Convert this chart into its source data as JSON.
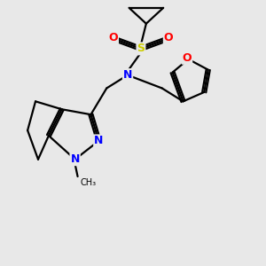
{
  "bg_color": "#e8e8e8",
  "atom_colors": {
    "N": "#0000ff",
    "O": "#ff0000",
    "S": "#cccc00"
  },
  "bond_color": "#000000",
  "bond_width": 1.6,
  "font_size_atom": 9
}
